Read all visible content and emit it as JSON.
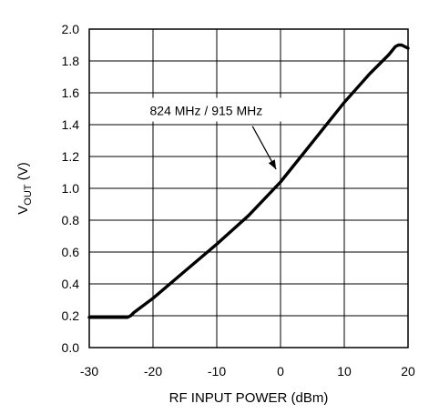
{
  "chart_data": {
    "type": "line",
    "xlabel": "RF INPUT POWER (dBm)",
    "ylabel": {
      "main": "V",
      "sub": "OUT",
      "unit": " (V)"
    },
    "xlim": [
      -30,
      20
    ],
    "ylim": [
      0,
      2
    ],
    "grid": true,
    "x_ticks": [
      -30,
      -20,
      -10,
      0,
      10,
      20
    ],
    "x_tick_labels": [
      "-30",
      "-20",
      "-10",
      "0",
      "10",
      "20"
    ],
    "y_ticks": [
      0,
      0.2,
      0.4,
      0.6,
      0.8,
      1.0,
      1.2,
      1.4,
      1.6,
      1.8,
      2.0
    ],
    "y_tick_labels": [
      "0.0",
      "0.2",
      "0.4",
      "0.6",
      "0.8",
      "1.0",
      "1.2",
      "1.4",
      "1.6",
      "1.8",
      "2.0"
    ],
    "series": [
      {
        "x": [
          -30,
          -25,
          -24,
          -23.5,
          -23,
          -22,
          -20,
          -15,
          -10,
          -5,
          0,
          5,
          10,
          14,
          16,
          17,
          18,
          18.5,
          19,
          20
        ],
        "y": [
          0.19,
          0.19,
          0.19,
          0.2,
          0.22,
          0.25,
          0.31,
          0.48,
          0.65,
          0.83,
          1.04,
          1.29,
          1.54,
          1.72,
          1.8,
          1.84,
          1.89,
          1.9,
          1.9,
          1.88
        ]
      }
    ],
    "annotation": {
      "text": "824 MHz / 915 MHz",
      "label_at": [
        -20.5,
        1.46
      ],
      "arrow_from": [
        -4.4,
        1.39
      ],
      "arrow_to": [
        -0.7,
        1.12
      ]
    }
  }
}
